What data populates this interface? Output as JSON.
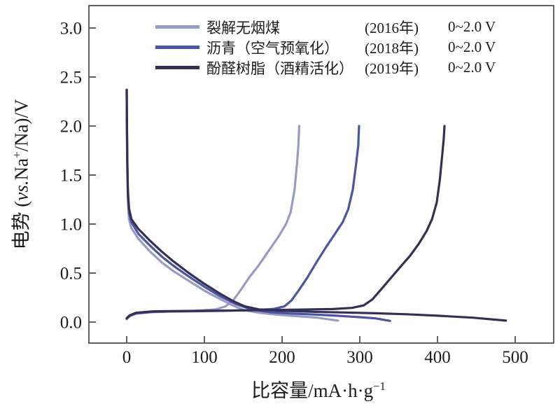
{
  "figure": {
    "background": "#ffffff",
    "frame_color": "#3c3c3c",
    "text_color": "#1c1c1c"
  },
  "axes": {
    "x": {
      "label_main": "比容量/mA·h·g",
      "label_sup": "−1",
      "tick_labels": [
        "0",
        "100",
        "200",
        "300",
        "400",
        "500"
      ],
      "tick_values": [
        0,
        100,
        200,
        300,
        400,
        500
      ]
    },
    "y": {
      "label_prefix": "电势 (",
      "label_italic": "vs.",
      "label_na": "Na",
      "label_sup": "+",
      "label_suffix": "/Na)/V",
      "tick_labels": [
        "0.0",
        "0.5",
        "1.0",
        "1.5",
        "2.0",
        "2.5",
        "3.0"
      ],
      "tick_values": [
        0,
        0.5,
        1.0,
        1.5,
        2.0,
        2.5,
        3.0
      ]
    }
  },
  "chart_data": {
    "type": "line",
    "xlabel": "比容量/mA·h·g−1",
    "ylabel": "电势 (vs.Na+/Na)/V",
    "xlim": [
      -50,
      550
    ],
    "ylim": [
      -0.21,
      3.23
    ],
    "x_ticks": [
      0,
      100,
      200,
      300,
      400,
      500
    ],
    "y_ticks": [
      0,
      0.5,
      1.0,
      1.5,
      2.0,
      2.5,
      3.0
    ],
    "grid": false,
    "legend_position": "top-center-inside",
    "series": [
      {
        "name": "裂解无烟煤",
        "year": "(2016年)",
        "voltage_range": "0~2.0 V",
        "color": "#989bc4",
        "charge_capacity_mAh_g": 222,
        "discharge_capacity_mAh_g": 272,
        "discharge": [
          [
            0,
            2.37
          ],
          [
            0.3,
            2.0
          ],
          [
            0.8,
            1.55
          ],
          [
            1.5,
            1.25
          ],
          [
            3,
            1.05
          ],
          [
            6,
            0.96
          ],
          [
            15,
            0.85
          ],
          [
            30,
            0.72
          ],
          [
            45,
            0.61
          ],
          [
            60,
            0.52
          ],
          [
            80,
            0.42
          ],
          [
            100,
            0.32
          ],
          [
            118,
            0.245
          ],
          [
            135,
            0.175
          ],
          [
            150,
            0.125
          ],
          [
            170,
            0.095
          ],
          [
            195,
            0.075
          ],
          [
            220,
            0.06
          ],
          [
            245,
            0.045
          ],
          [
            272,
            0.015
          ]
        ],
        "charge": [
          [
            0,
            0.03
          ],
          [
            4,
            0.06
          ],
          [
            12,
            0.085
          ],
          [
            30,
            0.1
          ],
          [
            60,
            0.11
          ],
          [
            90,
            0.115
          ],
          [
            115,
            0.13
          ],
          [
            127,
            0.16
          ],
          [
            137,
            0.22
          ],
          [
            147,
            0.33
          ],
          [
            158,
            0.46
          ],
          [
            170,
            0.58
          ],
          [
            183,
            0.73
          ],
          [
            196,
            0.88
          ],
          [
            205,
            1.0
          ],
          [
            211,
            1.12
          ],
          [
            216,
            1.35
          ],
          [
            219,
            1.6
          ],
          [
            221,
            1.8
          ],
          [
            222,
            2.0
          ]
        ]
      },
      {
        "name": "沥青（空气预氧化）",
        "year": "(2018年)",
        "voltage_range": "0~2.0 V",
        "color": "#4b55a1",
        "charge_capacity_mAh_g": 299,
        "discharge_capacity_mAh_g": 339,
        "discharge": [
          [
            0,
            2.37
          ],
          [
            0.3,
            2.0
          ],
          [
            0.8,
            1.6
          ],
          [
            1.5,
            1.3
          ],
          [
            3,
            1.12
          ],
          [
            6,
            1.02
          ],
          [
            15,
            0.9
          ],
          [
            30,
            0.78
          ],
          [
            45,
            0.67
          ],
          [
            60,
            0.575
          ],
          [
            80,
            0.465
          ],
          [
            100,
            0.36
          ],
          [
            120,
            0.265
          ],
          [
            140,
            0.185
          ],
          [
            160,
            0.13
          ],
          [
            185,
            0.1
          ],
          [
            210,
            0.088
          ],
          [
            240,
            0.078
          ],
          [
            270,
            0.065
          ],
          [
            300,
            0.05
          ],
          [
            320,
            0.038
          ],
          [
            339,
            0.012
          ]
        ],
        "charge": [
          [
            0,
            0.035
          ],
          [
            4,
            0.065
          ],
          [
            12,
            0.09
          ],
          [
            35,
            0.105
          ],
          [
            80,
            0.11
          ],
          [
            125,
            0.115
          ],
          [
            165,
            0.122
          ],
          [
            190,
            0.135
          ],
          [
            203,
            0.16
          ],
          [
            212,
            0.22
          ],
          [
            222,
            0.33
          ],
          [
            233,
            0.46
          ],
          [
            245,
            0.62
          ],
          [
            257,
            0.77
          ],
          [
            268,
            0.9
          ],
          [
            278,
            1.02
          ],
          [
            285,
            1.15
          ],
          [
            291,
            1.35
          ],
          [
            295,
            1.6
          ],
          [
            298,
            1.8
          ],
          [
            299,
            2.0
          ]
        ]
      },
      {
        "name": "酚醛树脂（酒精活化）",
        "year": "(2019年)",
        "voltage_range": "0~2.0 V",
        "color": "#332f55",
        "charge_capacity_mAh_g": 409,
        "discharge_capacity_mAh_g": 488,
        "discharge": [
          [
            0,
            2.37
          ],
          [
            0.3,
            2.05
          ],
          [
            0.8,
            1.65
          ],
          [
            1.5,
            1.35
          ],
          [
            3,
            1.16
          ],
          [
            6,
            1.05
          ],
          [
            15,
            0.95
          ],
          [
            30,
            0.83
          ],
          [
            45,
            0.72
          ],
          [
            60,
            0.62
          ],
          [
            80,
            0.5
          ],
          [
            100,
            0.39
          ],
          [
            120,
            0.29
          ],
          [
            138,
            0.21
          ],
          [
            152,
            0.16
          ],
          [
            170,
            0.13
          ],
          [
            200,
            0.115
          ],
          [
            240,
            0.105
          ],
          [
            280,
            0.098
          ],
          [
            320,
            0.09
          ],
          [
            360,
            0.08
          ],
          [
            400,
            0.065
          ],
          [
            445,
            0.045
          ],
          [
            488,
            0.015
          ]
        ],
        "charge": [
          [
            0,
            0.04
          ],
          [
            4,
            0.07
          ],
          [
            12,
            0.095
          ],
          [
            35,
            0.11
          ],
          [
            100,
            0.115
          ],
          [
            160,
            0.12
          ],
          [
            220,
            0.127
          ],
          [
            265,
            0.133
          ],
          [
            290,
            0.145
          ],
          [
            305,
            0.17
          ],
          [
            316,
            0.23
          ],
          [
            327,
            0.33
          ],
          [
            340,
            0.45
          ],
          [
            353,
            0.57
          ],
          [
            365,
            0.68
          ],
          [
            376,
            0.8
          ],
          [
            386,
            0.93
          ],
          [
            393,
            1.05
          ],
          [
            399,
            1.22
          ],
          [
            403,
            1.45
          ],
          [
            406,
            1.7
          ],
          [
            408,
            1.87
          ],
          [
            409,
            2.0
          ]
        ]
      }
    ]
  }
}
